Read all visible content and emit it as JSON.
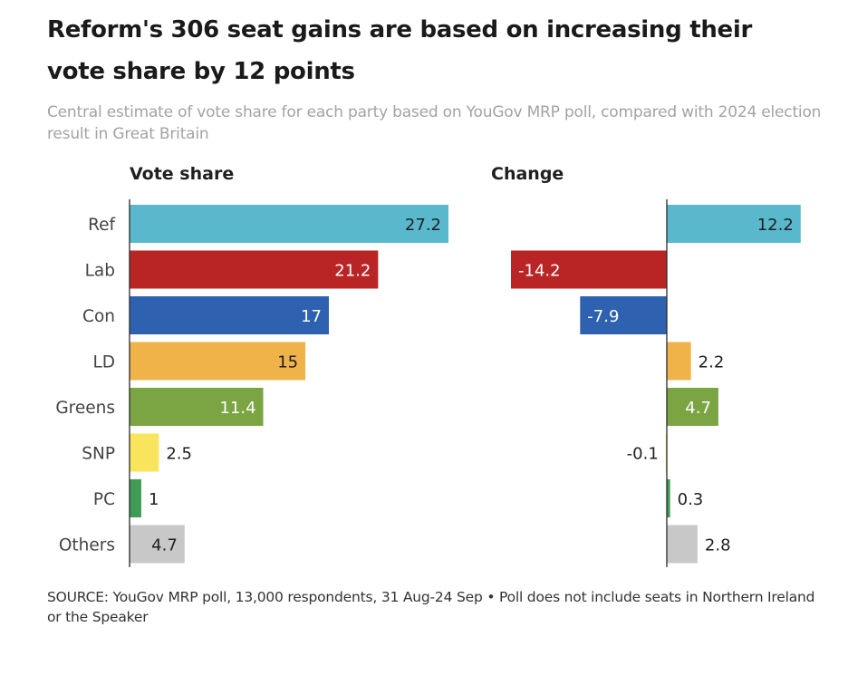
{
  "header": {
    "title": "Reform's 306 seat gains are based on increasing their vote share by 12 points",
    "subtitle": "Central estimate of vote share for each party based on YouGov MRP poll, compared with 2024 election result in Great Britain"
  },
  "footer": {
    "source": "SOURCE: YouGov MRP poll, 13,000 respondents, 31 Aug-24 Sep • Poll does not include seats in Northern Ireland or the Speaker"
  },
  "chart_data": [
    {
      "type": "bar",
      "orientation": "horizontal",
      "title": "Vote share",
      "categories": [
        "Ref",
        "Lab",
        "Con",
        "LD",
        "Greens",
        "SNP",
        "PC",
        "Others"
      ],
      "values": [
        27.2,
        21.2,
        17,
        15,
        11.4,
        2.5,
        1,
        4.7
      ],
      "value_labels": [
        "27.2",
        "21.2",
        "17",
        "15",
        "11.4",
        "2.5",
        "1",
        "4.7"
      ],
      "colors": [
        "#5ab8cc",
        "#b92525",
        "#2e62b0",
        "#efb34a",
        "#7ba543",
        "#f9e45e",
        "#3e9c55",
        "#c8c8c8"
      ],
      "label_colors": [
        "#1f1f1f",
        "#ffffff",
        "#ffffff",
        "#1f1f1f",
        "#ffffff",
        "#1f1f1f",
        "#1f1f1f",
        "#1f1f1f"
      ],
      "xlim": [
        0,
        27.2
      ],
      "grid": false
    },
    {
      "type": "bar",
      "orientation": "horizontal",
      "title": "Change",
      "categories": [
        "Ref",
        "Lab",
        "Con",
        "LD",
        "Greens",
        "SNP",
        "PC",
        "Others"
      ],
      "values": [
        12.2,
        -14.2,
        -7.9,
        2.2,
        4.7,
        -0.1,
        0.3,
        2.8
      ],
      "value_labels": [
        "12.2",
        "-14.2",
        "-7.9",
        "2.2",
        "4.7",
        "-0.1",
        "0.3",
        "2.8"
      ],
      "colors": [
        "#5ab8cc",
        "#b92525",
        "#2e62b0",
        "#efb34a",
        "#7ba543",
        "#f9e45e",
        "#3e9c55",
        "#c8c8c8"
      ],
      "label_colors": [
        "#1f1f1f",
        "#ffffff",
        "#ffffff",
        "#1f1f1f",
        "#ffffff",
        "#1f1f1f",
        "#1f1f1f",
        "#1f1f1f"
      ],
      "xlim": [
        -14.2,
        12.2
      ],
      "grid": false
    }
  ]
}
